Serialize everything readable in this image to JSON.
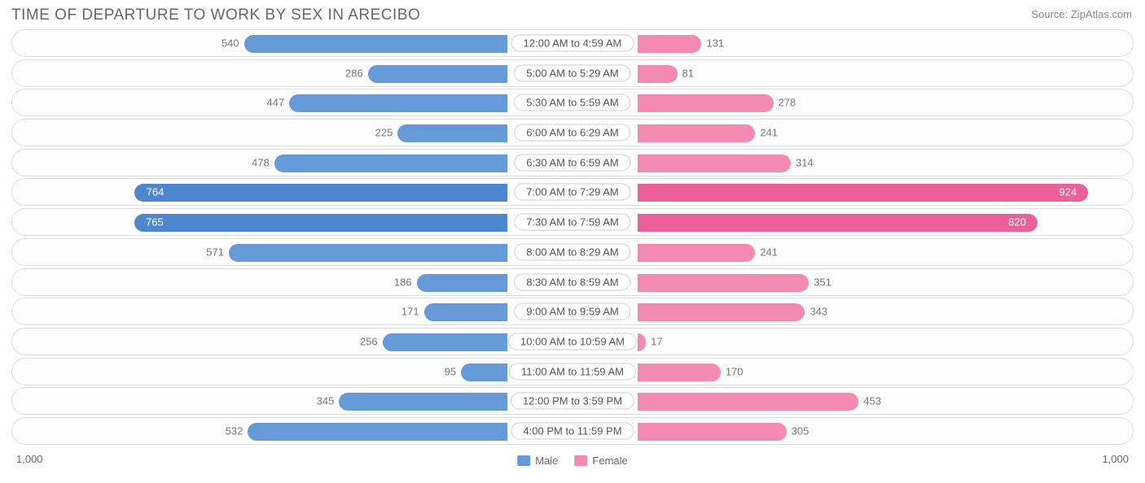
{
  "title": "TIME OF DEPARTURE TO WORK BY SEX IN ARECIBO",
  "source": "Source: ZipAtlas.com",
  "chart": {
    "type": "diverging-bar",
    "max_value": 1000,
    "axis_label_left": "1,000",
    "axis_label_right": "1,000",
    "colors": {
      "male": "#6699d8",
      "male_hi": "#4f87ce",
      "female": "#f28ab2",
      "female_hi": "#eb6098",
      "track_bg": "#fdfdfd",
      "track_border": "#dcdcdc",
      "text": "#666666",
      "value_text": "#777777",
      "value_text_inside": "#ffffff"
    },
    "legend": [
      {
        "label": "Male",
        "color": "#6699d8"
      },
      {
        "label": "Female",
        "color": "#f28ab2"
      }
    ],
    "rows": [
      {
        "label": "12:00 AM to 4:59 AM",
        "male": 540,
        "female": 131
      },
      {
        "label": "5:00 AM to 5:29 AM",
        "male": 286,
        "female": 81
      },
      {
        "label": "5:30 AM to 5:59 AM",
        "male": 447,
        "female": 278
      },
      {
        "label": "6:00 AM to 6:29 AM",
        "male": 225,
        "female": 241
      },
      {
        "label": "6:30 AM to 6:59 AM",
        "male": 478,
        "female": 314
      },
      {
        "label": "7:00 AM to 7:29 AM",
        "male": 764,
        "female": 924,
        "highlight": true
      },
      {
        "label": "7:30 AM to 7:59 AM",
        "male": 765,
        "female": 820,
        "highlight": true
      },
      {
        "label": "8:00 AM to 8:29 AM",
        "male": 571,
        "female": 241
      },
      {
        "label": "8:30 AM to 8:59 AM",
        "male": 186,
        "female": 351
      },
      {
        "label": "9:00 AM to 9:59 AM",
        "male": 171,
        "female": 343
      },
      {
        "label": "10:00 AM to 10:59 AM",
        "male": 256,
        "female": 17
      },
      {
        "label": "11:00 AM to 11:59 AM",
        "male": 95,
        "female": 170
      },
      {
        "label": "12:00 PM to 3:59 PM",
        "male": 345,
        "female": 453
      },
      {
        "label": "4:00 PM to 11:59 PM",
        "male": 532,
        "female": 305
      }
    ]
  }
}
